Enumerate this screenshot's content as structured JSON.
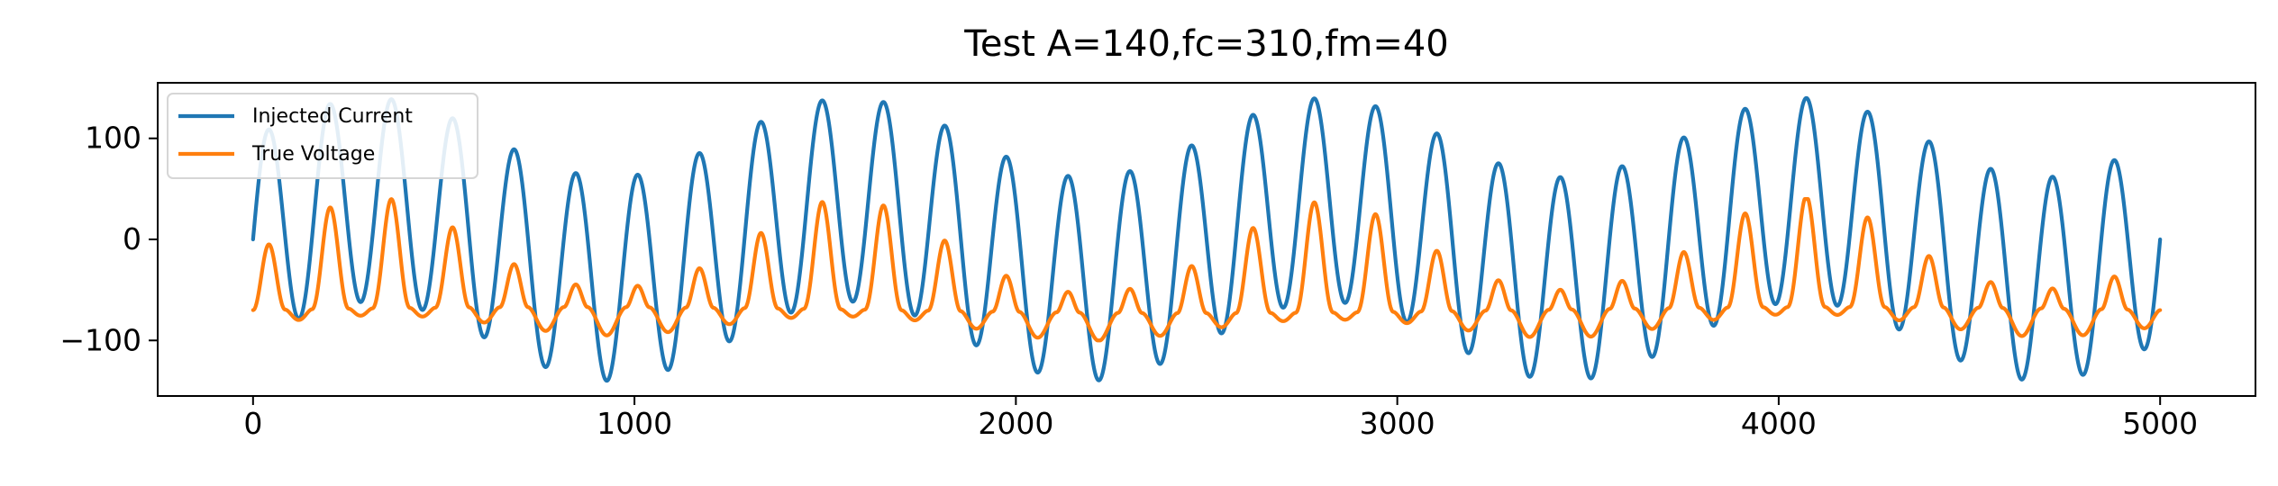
{
  "chart_data": {
    "type": "line",
    "title": "Test A=140,fc=310,fm=40",
    "xlabel": "",
    "ylabel": "",
    "xlim": [
      -250,
      5250
    ],
    "ylim": [
      -155,
      155
    ],
    "x_ticks": [
      0,
      1000,
      2000,
      3000,
      4000,
      5000
    ],
    "x_tick_labels": [
      "0",
      "1000",
      "2000",
      "3000",
      "4000",
      "5000"
    ],
    "y_ticks": [
      -100,
      0,
      100
    ],
    "y_tick_labels": [
      "−100",
      "0",
      "100"
    ],
    "grid": false,
    "legend_position": "upper-left",
    "colors": {
      "injected_current": "#1f77b4",
      "true_voltage": "#ff7f0e"
    },
    "series": [
      {
        "name": "Injected Current",
        "key": "injected_current",
        "x_range": [
          0,
          5000
        ],
        "num_points": 5001,
        "peak_amplitude": 140,
        "visible_level": "oscillates between about -140 and +140"
      },
      {
        "name": "True Voltage",
        "key": "true_voltage",
        "x_range": [
          0,
          5000
        ],
        "num_points": 5001,
        "baseline": -70,
        "peak_max": 40,
        "trough_min": -100,
        "visible_level": "baseline near -70 with spikes reaching about +40"
      }
    ]
  }
}
